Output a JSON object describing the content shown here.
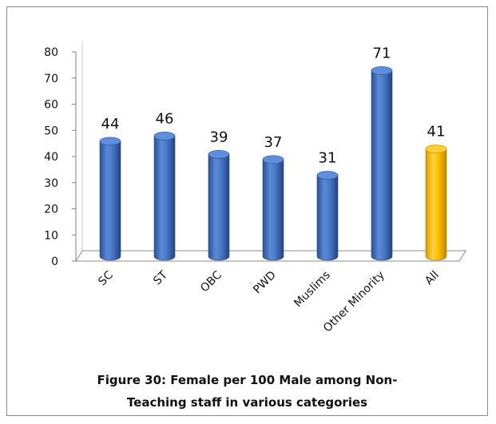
{
  "chart_data": {
    "type": "bar",
    "categories": [
      "SC",
      "ST",
      "OBC",
      "PWD",
      "Muslims",
      "Other Minority",
      "All"
    ],
    "values": [
      44,
      46,
      39,
      37,
      31,
      71,
      41
    ],
    "data_labels": [
      "44",
      "46",
      "39",
      "37",
      "31",
      "71",
      "41"
    ],
    "y_ticks": [
      "0",
      "10",
      "20",
      "30",
      "40",
      "50",
      "60",
      "70",
      "80"
    ],
    "ylim": [
      0,
      80
    ],
    "grid": false,
    "legend": "none",
    "style": "3d-cylinder",
    "colors": {
      "bar": "#4472c4",
      "highlight": "#ffc000",
      "highlight_category": "All"
    }
  },
  "caption": {
    "line1": "Figure 30: Female per 100 Male among Non-",
    "line2": "Teaching staff in various categories"
  }
}
